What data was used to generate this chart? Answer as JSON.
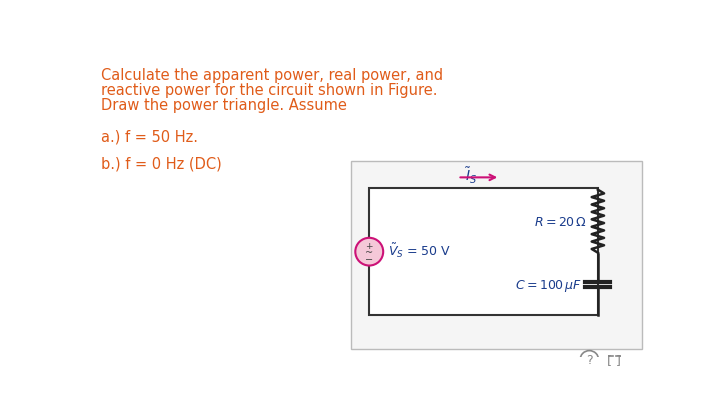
{
  "text_color_orange": "#E05C1A",
  "text_color_blue": "#1A3C8C",
  "text_color_pink": "#CC1177",
  "background_white": "#FFFFFF",
  "wire_color": "#222222",
  "arrow_color": "#CC1177",
  "source_circle_facecolor": "#F5C8D8",
  "source_circle_edgecolor": "#CC1177",
  "box_facecolor": "#F5F5F5",
  "box_edgecolor": "#BBBBBB",
  "icon_color": "#888888",
  "main_text_lines": [
    "Calculate the apparent power, real power, and",
    "reactive power for the circuit shown in Figure.",
    "Draw the power triangle. Assume"
  ],
  "sub_text_a": "a.) f = 50 Hz.",
  "sub_text_b": "b.) f = 0 Hz (DC)"
}
